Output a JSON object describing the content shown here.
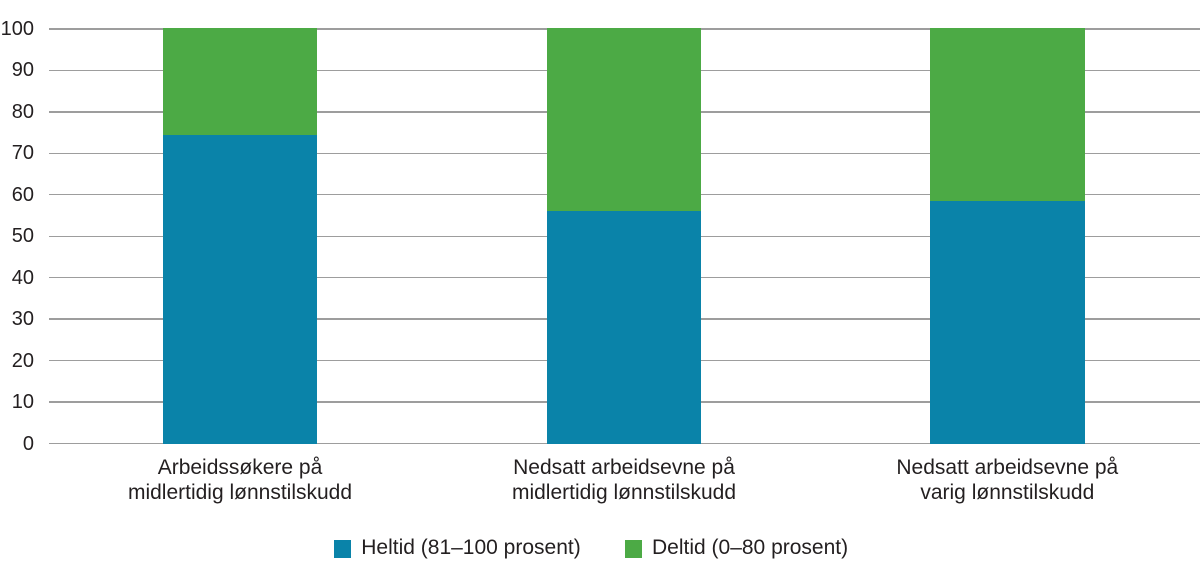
{
  "chart_data": {
    "type": "bar",
    "stacked": true,
    "orientation": "vertical",
    "categories": [
      [
        "Arbeidssøkere på",
        "midlertidig lønnstilskudd"
      ],
      [
        "Nedsatt arbeidsevne på",
        "midlertidig lønnstilskudd"
      ],
      [
        "Nedsatt arbeidsevne på",
        "varig lønnstilskudd"
      ]
    ],
    "series": [
      {
        "name": "Heltid (81–100 prosent)",
        "color": "#0a83a9",
        "values": [
          74.5,
          56,
          58.5
        ]
      },
      {
        "name": "Deltid (0–80 prosent)",
        "color": "#4caa45",
        "values": [
          25.5,
          44,
          41.5
        ]
      }
    ],
    "title": "",
    "xlabel": "",
    "ylabel": "",
    "ylim": [
      0,
      100
    ],
    "yticks": [
      0,
      10,
      20,
      30,
      40,
      50,
      60,
      70,
      80,
      90,
      100
    ],
    "grid": "horizontal",
    "legend_position": "bottom"
  },
  "colors": {
    "background": "#ffffff",
    "gridline": "#9d9d9d",
    "text": "#231f20",
    "heltid": "#0a83a9",
    "deltid": "#4caa45"
  }
}
